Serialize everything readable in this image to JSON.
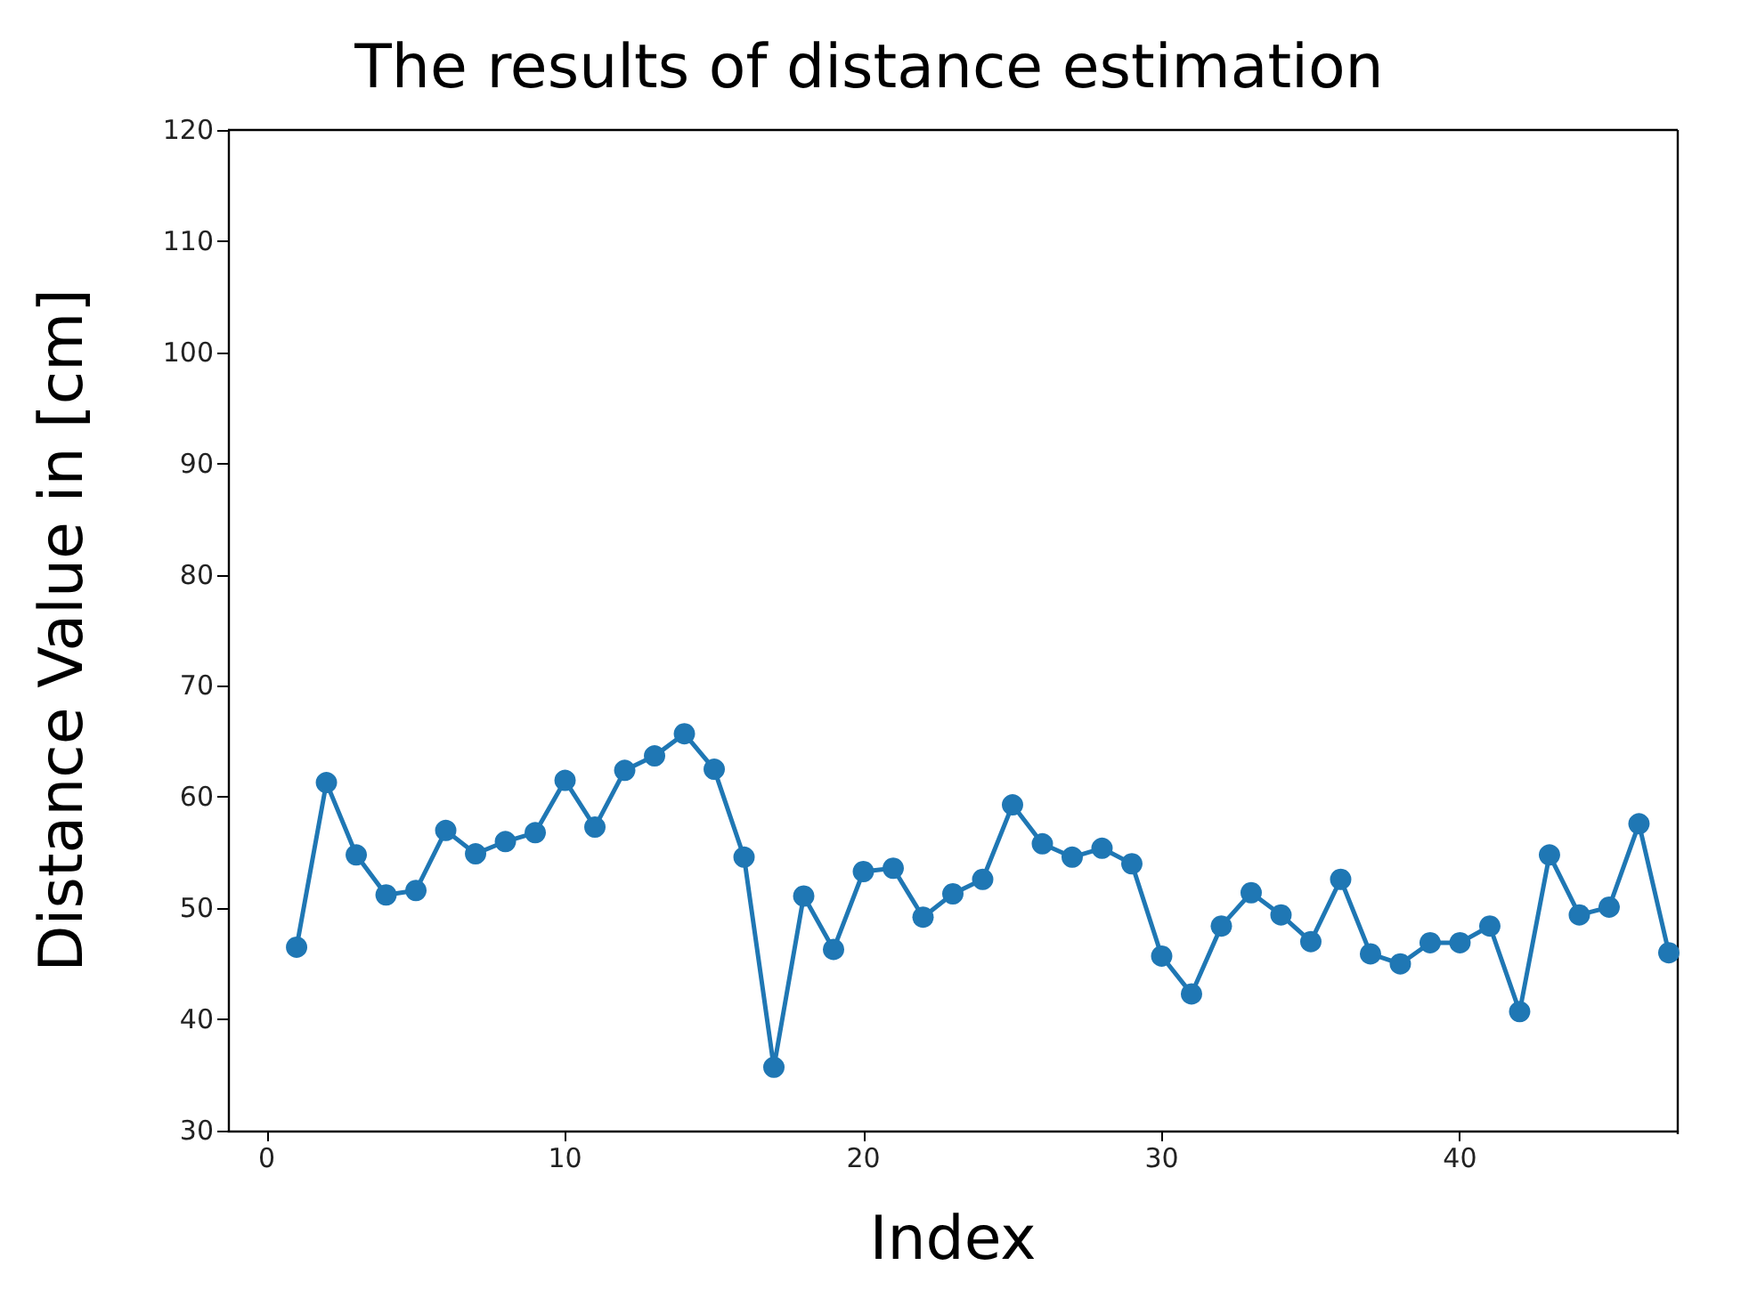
{
  "chart_data": {
    "type": "line",
    "title": "The results of distance estimation",
    "xlabel": "Index",
    "ylabel": "Distance Value in [cm]",
    "x": [
      1,
      2,
      3,
      4,
      5,
      6,
      7,
      8,
      9,
      10,
      11,
      12,
      13,
      14,
      15,
      16,
      17,
      18,
      19,
      20,
      21,
      22,
      23,
      24,
      25,
      26,
      27,
      28,
      29,
      30,
      31,
      32,
      33,
      34,
      35,
      36,
      37,
      38,
      39,
      40,
      41,
      42,
      43,
      44,
      45,
      46,
      47
    ],
    "series": [
      {
        "color": "#1f77b4",
        "values": [
          46.5,
          61.3,
          54.8,
          51.2,
          51.6,
          57,
          54.9,
          56,
          56.8,
          61.5,
          57.3,
          62.4,
          63.7,
          65.7,
          62.5,
          54.6,
          35.7,
          51.1,
          46.3,
          53.3,
          53.6,
          49.2,
          51.3,
          52.6,
          59.3,
          55.8,
          54.6,
          55.4,
          54,
          45.7,
          42.3,
          48.4,
          51.4,
          49.4,
          47,
          52.6,
          45.9,
          45,
          46.9,
          46.9,
          48.4,
          40.7,
          54.8,
          49.4,
          50.1,
          57.6,
          46
        ]
      }
    ],
    "xlim": [
      -1.3,
      47.3
    ],
    "xticks": [
      0,
      10,
      20,
      30,
      40
    ],
    "ylim": [
      30,
      120
    ],
    "yticks": [
      30,
      40,
      50,
      60,
      70,
      80,
      90,
      100,
      110,
      120
    ],
    "grid": false,
    "marker": "circle",
    "line_style": "solid"
  }
}
